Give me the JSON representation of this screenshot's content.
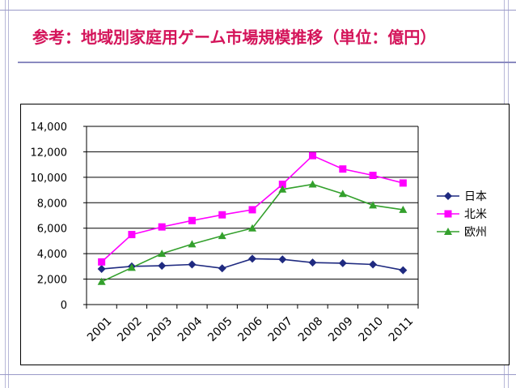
{
  "slide": {
    "title": "参考：地域別家庭用ゲーム市場規模推移（単位：億円）"
  },
  "colors": {
    "title": "#d4145a",
    "japan": "#1f2a80",
    "north_america": "#ff00ff",
    "europe": "#33a02c"
  },
  "chart_data": {
    "type": "line",
    "title": "",
    "xlabel": "",
    "ylabel": "",
    "categories": [
      "2001",
      "2002",
      "2003",
      "2004",
      "2005",
      "2006",
      "2007",
      "2008",
      "2009",
      "2010",
      "2011"
    ],
    "ylim": [
      0,
      14000
    ],
    "yticks": [
      0,
      2000,
      4000,
      6000,
      8000,
      10000,
      12000,
      14000
    ],
    "ytick_labels": [
      "0",
      "2,000",
      "4,000",
      "6,000",
      "8,000",
      "10,000",
      "12,000",
      "14,000"
    ],
    "grid": true,
    "legend_position": "right",
    "series": [
      {
        "name": "日本",
        "marker": "diamond",
        "color": "#1f2a80",
        "values": [
          2800,
          3000,
          3050,
          3150,
          2850,
          3600,
          3550,
          3300,
          3250,
          3150,
          2700
        ]
      },
      {
        "name": "北米",
        "marker": "square",
        "color": "#ff00ff",
        "values": [
          3350,
          5500,
          6100,
          6600,
          7050,
          7450,
          9450,
          11700,
          10650,
          10150,
          9550
        ]
      },
      {
        "name": "欧州",
        "marker": "triangle",
        "color": "#33a02c",
        "values": [
          1800,
          2900,
          4000,
          4750,
          5400,
          6000,
          9050,
          9450,
          8700,
          7800,
          7450
        ]
      }
    ]
  }
}
